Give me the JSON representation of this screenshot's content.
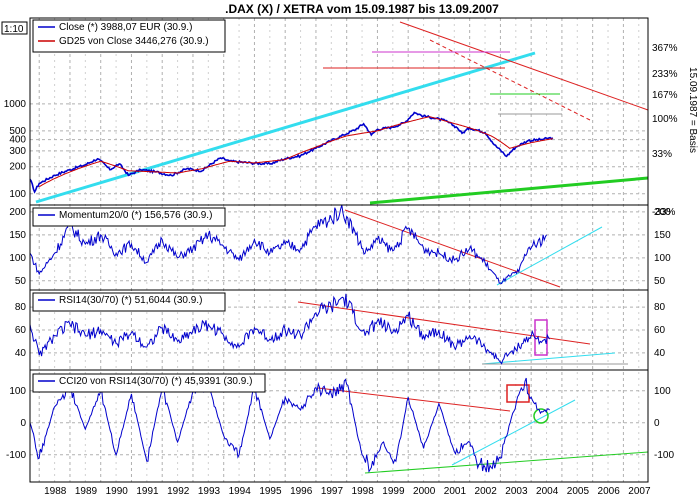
{
  "title": ".DAX (X) / XETRA vom 15.09.1987 bis 13.09.2007",
  "corner_label": "1:10",
  "right_axis_label": "15.09.1987 = Basis",
  "colors": {
    "price": "#0000cc",
    "ma": "#cc0000",
    "trend_cyan": "#33ddee",
    "trend_red": "#dd2222",
    "trend_green": "#22cc22",
    "magenta": "#cc33cc",
    "grid": "#b0b0b0",
    "frame": "#000000"
  },
  "x_axis": {
    "labels": [
      "1988",
      "1989",
      "1990",
      "1991",
      "1992",
      "1993",
      "1994",
      "1995",
      "1996",
      "1997",
      "1998",
      "1999",
      "2000",
      "2001",
      "2002",
      "2003",
      "2004",
      "2005",
      "2006",
      "2007"
    ]
  },
  "chart_data": [
    {
      "type": "line",
      "panel": "price",
      "scale": "log",
      "ylim": [
        75,
        9000
      ],
      "left_ticks": [
        "100",
        "200",
        "300",
        "400",
        "500",
        "1000"
      ],
      "right_ticks": [
        "367%",
        "233%",
        "167%",
        "100%",
        "33%",
        "-33%"
      ],
      "series": [
        {
          "name": "Close (*) 3988,07 EUR (30.9.)",
          "color": "#0000cc",
          "x": [
            1987.7,
            1987.85,
            1988.0,
            1988.5,
            1989.0,
            1989.5,
            1989.9,
            1990.3,
            1990.6,
            1990.9,
            1991.3,
            1991.8,
            1992.3,
            1992.8,
            1993.3,
            1993.9,
            1994.2,
            1994.9,
            1995.5,
            1996.0,
            1996.5,
            1997.0,
            1997.5,
            1997.9,
            1998.3,
            1998.55,
            1998.8,
            1999.0,
            1999.5,
            1999.9,
            2000.2,
            2000.5,
            2000.8,
            2001.2,
            2001.6,
            2001.75,
            2002.0,
            2002.5,
            2002.8,
            2003.2,
            2003.5,
            2003.9,
            2004.3,
            2004.7
          ],
          "y": [
            1450,
            1050,
            1300,
            1600,
            1850,
            2100,
            2450,
            1850,
            2150,
            1600,
            1850,
            1750,
            1600,
            1900,
            1800,
            2500,
            2300,
            2200,
            2150,
            2450,
            2650,
            3200,
            3900,
            4500,
            5200,
            6000,
            4500,
            5200,
            5500,
            6200,
            8000,
            7300,
            7000,
            6500,
            5400,
            4700,
            5400,
            4800,
            3500,
            2600,
            3300,
            3900,
            4000,
            4200
          ]
        },
        {
          "name": "GD25 von Close 3446,276 (30.9.)",
          "color": "#cc0000",
          "x": [
            1988.0,
            1989.0,
            1990.0,
            1990.9,
            1991.8,
            1992.5,
            1993.3,
            1994.2,
            1995.0,
            1996.0,
            1997.0,
            1998.0,
            1999.0,
            2000.0,
            2000.7,
            2001.3,
            2002.0,
            2002.7,
            2003.3,
            2004.0,
            2004.7
          ],
          "y": [
            1200,
            1750,
            2300,
            1800,
            1750,
            1700,
            1900,
            2300,
            2200,
            2400,
            3300,
            4400,
            5000,
            6300,
            7200,
            6300,
            5400,
            4400,
            3200,
            3700,
            4100
          ]
        }
      ]
    },
    {
      "type": "line",
      "panel": "momentum",
      "ylim": [
        30,
        215
      ],
      "ticks": [
        "50",
        "100",
        "150",
        "200"
      ],
      "series": [
        {
          "name": "Momentum20/0 (*) 156,576 (30.9.)",
          "color": "#0000cc",
          "x": [
            1987.7,
            1988.0,
            1988.5,
            1989.0,
            1989.5,
            1990.0,
            1990.5,
            1991.0,
            1991.5,
            1992.0,
            1992.5,
            1993.0,
            1993.5,
            1994.0,
            1994.5,
            1995.0,
            1995.5,
            1996.0,
            1996.5,
            1997.0,
            1997.5,
            1997.8,
            1998.0,
            1998.3,
            1998.6,
            1999.0,
            1999.5,
            2000.0,
            2000.5,
            2001.0,
            2001.5,
            2002.0,
            2002.5,
            2003.0,
            2003.3,
            2003.6,
            2003.9,
            2004.2,
            2004.5
          ],
          "y": [
            110,
            65,
            110,
            170,
            130,
            150,
            110,
            130,
            90,
            140,
            100,
            120,
            150,
            125,
            95,
            140,
            110,
            130,
            120,
            170,
            185,
            205,
            190,
            150,
            110,
            140,
            115,
            165,
            120,
            110,
            95,
            120,
            90,
            45,
            60,
            70,
            120,
            130,
            150
          ]
        }
      ]
    },
    {
      "type": "line",
      "panel": "rsi",
      "ylim": [
        25,
        95
      ],
      "ticks": [
        "40",
        "60",
        "80"
      ],
      "series": [
        {
          "name": "RSI14(30/70) (*) 51,6044 (30.9.)",
          "color": "#0000cc",
          "x": [
            1987.7,
            1988.0,
            1988.5,
            1989.0,
            1989.5,
            1990.0,
            1990.5,
            1991.0,
            1991.5,
            1992.0,
            1992.5,
            1993.0,
            1993.5,
            1994.0,
            1994.5,
            1995.0,
            1995.5,
            1996.0,
            1996.5,
            1997.0,
            1997.5,
            1997.9,
            1998.2,
            1998.6,
            1999.0,
            1999.5,
            2000.0,
            2000.5,
            2001.0,
            2001.5,
            2002.0,
            2002.5,
            2003.0,
            2003.3,
            2003.7,
            2004.0,
            2004.3,
            2004.6
          ],
          "y": [
            65,
            38,
            55,
            65,
            55,
            60,
            48,
            58,
            45,
            62,
            50,
            60,
            65,
            55,
            45,
            62,
            52,
            60,
            55,
            75,
            80,
            88,
            75,
            55,
            68,
            58,
            72,
            55,
            60,
            45,
            55,
            45,
            32,
            40,
            48,
            55,
            50,
            52
          ]
        }
      ]
    },
    {
      "type": "line",
      "panel": "cci",
      "ylim": [
        -185,
        165
      ],
      "ticks": [
        "-100",
        "0",
        "100"
      ],
      "series": [
        {
          "name": "CCI20 von RSI14(30/70) (*) 45,9391 (30.9.)",
          "color": "#0000cc",
          "x": [
            1987.7,
            1988.0,
            1988.5,
            1989.0,
            1989.5,
            1990.0,
            1990.5,
            1991.0,
            1991.5,
            1992.0,
            1992.5,
            1993.0,
            1993.5,
            1994.0,
            1994.5,
            1995.0,
            1995.5,
            1996.0,
            1996.5,
            1997.0,
            1997.5,
            1998.0,
            1998.5,
            1998.8,
            1999.2,
            1999.6,
            2000.0,
            2000.5,
            2001.0,
            2001.5,
            2002.0,
            2002.3,
            2002.7,
            2003.0,
            2003.4,
            2003.8,
            2004.0,
            2004.3,
            2004.6
          ],
          "y": [
            0,
            -110,
            50,
            110,
            -20,
            100,
            -100,
            90,
            -120,
            110,
            -60,
            100,
            120,
            -40,
            -100,
            110,
            -50,
            80,
            40,
            110,
            90,
            120,
            -100,
            -140,
            -60,
            -120,
            80,
            -80,
            60,
            -90,
            -60,
            -130,
            -140,
            -110,
            30,
            130,
            80,
            30,
            40
          ]
        }
      ]
    }
  ]
}
